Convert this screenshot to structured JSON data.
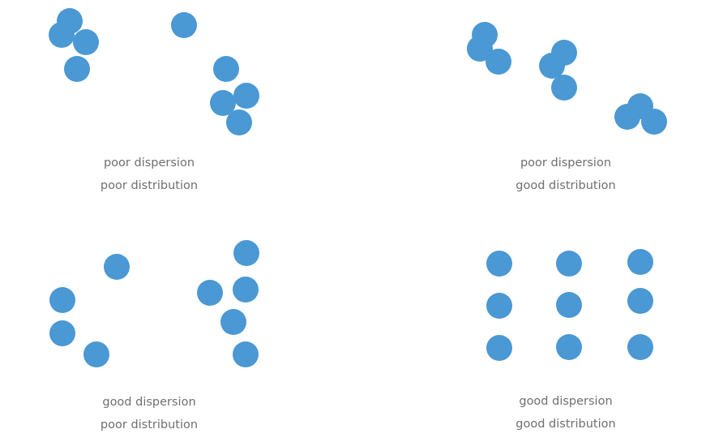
{
  "dot_color": "#4a98d4",
  "label_color": "#6f6f6f",
  "panels": [
    {
      "id": "top-left",
      "dispersion_label": "poor dispersion",
      "distribution_label": "poor distribution"
    },
    {
      "id": "top-right",
      "dispersion_label": "poor dispersion",
      "distribution_label": "good distribution"
    },
    {
      "id": "bottom-left",
      "dispersion_label": "good dispersion",
      "distribution_label": "poor distribution"
    },
    {
      "id": "bottom-right",
      "dispersion_label": "good dispersion",
      "distribution_label": "good distribution"
    }
  ]
}
